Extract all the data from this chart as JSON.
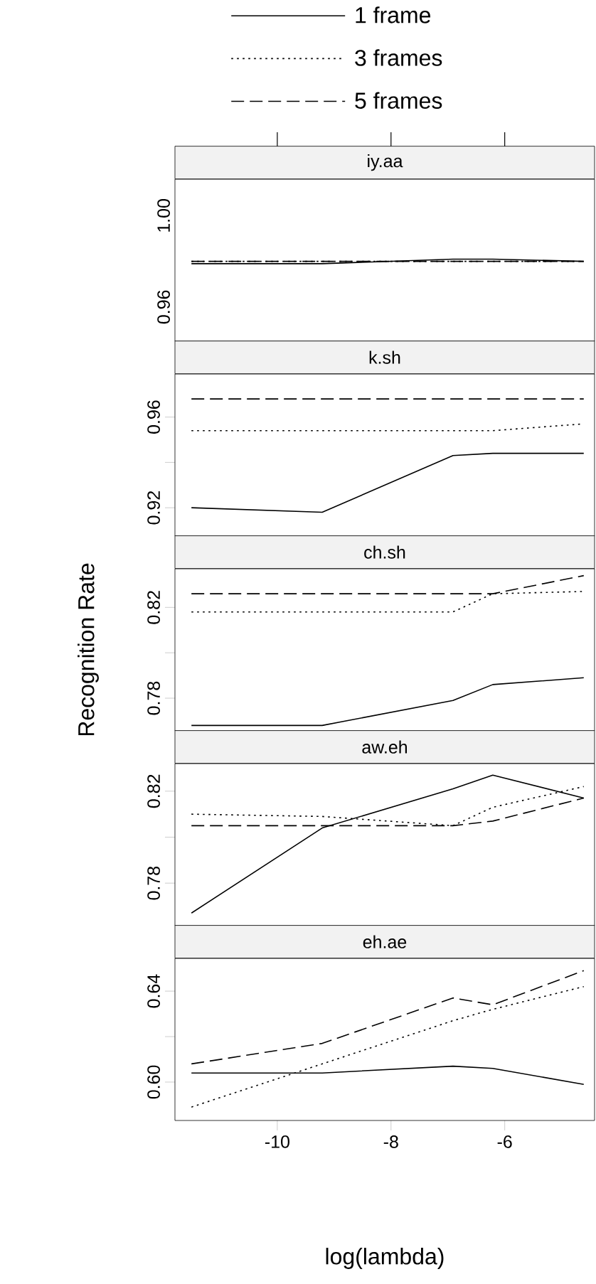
{
  "chart_data": [
    {
      "type": "line",
      "title": "iy.aa",
      "legend": "top",
      "x": [
        -11.51,
        -9.21,
        -6.91,
        -6.21,
        -4.61
      ],
      "xlim": [
        -11.8,
        -4.42
      ],
      "xticks": [
        {
          "value": -10,
          "label": null
        },
        {
          "value": -8,
          "label": null
        },
        {
          "value": -6,
          "label": null
        }
      ],
      "tick_labels": "y",
      "ylim": [
        0.945,
        1.016
      ],
      "yticks": [
        0.96,
        {
          "value": 0.98,
          "label": null
        },
        {
          "value": 1.0,
          "label": "1.00"
        }
      ],
      "series": [
        {
          "name": "1 frame",
          "color": "#000000",
          "line_style": "solid",
          "values": [
            0.979,
            0.979,
            0.981,
            0.981,
            0.98
          ]
        },
        {
          "name": "3 frames",
          "color": "#000000",
          "line_style": "dotted",
          "values": [
            0.98,
            0.98,
            0.98,
            0.98,
            0.98
          ]
        },
        {
          "name": "5 frames",
          "color": "#000000",
          "line_style": "dashed",
          "values": [
            0.98,
            0.98,
            0.98,
            0.98,
            0.98
          ]
        }
      ]
    },
    {
      "type": "line",
      "title": "k.sh",
      "x": [
        -11.51,
        -9.21,
        -6.91,
        -6.21,
        -4.61
      ],
      "xlim": [
        -11.8,
        -4.42
      ],
      "tick_labels": "y",
      "ylim": [
        0.9075,
        0.979
      ],
      "yticks": [
        0.92,
        {
          "value": 0.94,
          "label": null
        },
        0.96
      ],
      "series": [
        {
          "color": "#000000",
          "line_style": "solid",
          "values": [
            0.92,
            0.918,
            0.943,
            0.944,
            0.944
          ]
        },
        {
          "color": "#000000",
          "line_style": "dotted",
          "values": [
            0.954,
            0.954,
            0.954,
            0.954,
            0.957
          ]
        },
        {
          "color": "#000000",
          "line_style": "dashed",
          "values": [
            0.968,
            0.968,
            0.968,
            0.968,
            0.968
          ]
        }
      ]
    },
    {
      "type": "line",
      "title": "ch.sh",
      "ylabel": "Recognition Rate",
      "x": [
        -11.51,
        -9.21,
        -6.91,
        -6.21,
        -4.61
      ],
      "xlim": [
        -11.8,
        -4.42
      ],
      "tick_labels": "y",
      "ylim": [
        0.7656,
        0.837
      ],
      "yticks": [
        0.78,
        {
          "value": 0.8,
          "label": null
        },
        0.82
      ],
      "series": [
        {
          "color": "#000000",
          "line_style": "solid",
          "values": [
            0.768,
            0.768,
            0.779,
            0.786,
            0.789
          ]
        },
        {
          "color": "#000000",
          "line_style": "dotted",
          "values": [
            0.818,
            0.818,
            0.818,
            0.826,
            0.827
          ]
        },
        {
          "color": "#000000",
          "line_style": "dashed",
          "values": [
            0.826,
            0.826,
            0.826,
            0.826,
            0.834
          ]
        }
      ]
    },
    {
      "type": "line",
      "title": "aw.eh",
      "x": [
        -11.51,
        -9.21,
        -6.91,
        -6.21,
        -4.61
      ],
      "xlim": [
        -11.8,
        -4.42
      ],
      "tick_labels": "y",
      "ylim": [
        0.7615,
        0.832
      ],
      "yticks": [
        0.78,
        {
          "value": 0.8,
          "label": null
        },
        0.82
      ],
      "series": [
        {
          "color": "#000000",
          "line_style": "solid",
          "values": [
            0.767,
            0.804,
            0.821,
            0.827,
            0.817
          ]
        },
        {
          "color": "#000000",
          "line_style": "dotted",
          "values": [
            0.81,
            0.809,
            0.805,
            0.813,
            0.822
          ]
        },
        {
          "color": "#000000",
          "line_style": "dashed",
          "values": [
            0.805,
            0.805,
            0.805,
            0.807,
            0.817
          ]
        }
      ]
    },
    {
      "type": "line",
      "title": "eh.ae",
      "xlabel": "log(lambda)",
      "x": [
        -11.51,
        -9.21,
        -6.91,
        -6.21,
        -4.61
      ],
      "xlim": [
        -11.8,
        -4.42
      ],
      "xticks": [
        -10,
        -8,
        -6
      ],
      "ylim": [
        0.5831,
        0.6544
      ],
      "yticks": [
        {
          "value": 0.6,
          "label": "0.60"
        },
        {
          "value": 0.62,
          "label": null
        },
        0.64
      ],
      "series": [
        {
          "color": "#000000",
          "line_style": "solid",
          "values": [
            0.604,
            0.604,
            0.607,
            0.606,
            0.599
          ]
        },
        {
          "color": "#000000",
          "line_style": "dotted",
          "values": [
            0.589,
            0.608,
            0.627,
            0.632,
            0.642
          ]
        },
        {
          "color": "#000000",
          "line_style": "dashed",
          "values": [
            0.608,
            0.617,
            0.637,
            0.634,
            0.649
          ]
        }
      ]
    }
  ]
}
